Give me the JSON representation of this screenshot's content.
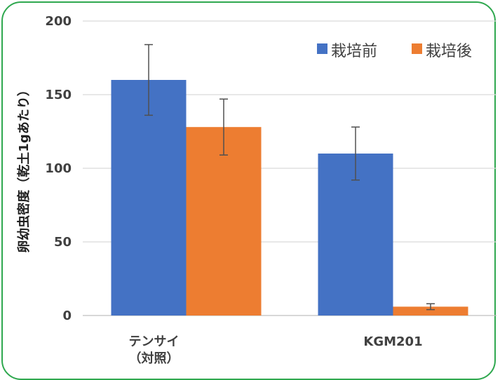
{
  "chart_data": {
    "type": "bar",
    "title": "",
    "xlabel": "",
    "ylabel": "卵幼虫密度（乾土1gあたり）",
    "ylim": [
      0,
      200
    ],
    "yticks": [
      0,
      50,
      100,
      150,
      200
    ],
    "grid": true,
    "legend_position": "top-right",
    "categories": [
      [
        "テンサイ",
        "（対照）"
      ],
      [
        "KGM201"
      ]
    ],
    "series": [
      {
        "name": "栽培前",
        "color": "#4472c4",
        "values": [
          160,
          110
        ],
        "errors": [
          24,
          18
        ]
      },
      {
        "name": "栽培後",
        "color": "#ed7d31",
        "values": [
          128,
          6
        ],
        "errors": [
          19,
          2
        ]
      }
    ]
  }
}
